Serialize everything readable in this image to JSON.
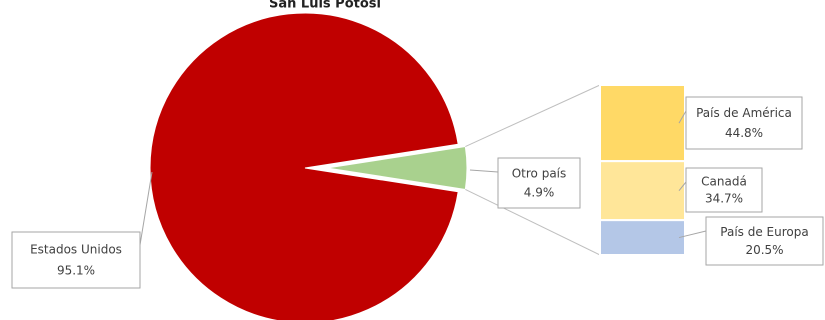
{
  "chart_data": {
    "type": "pie-of-bar",
    "title": "San Luis Potosí",
    "categories": [
      "Estados Unidos",
      "Otro país"
    ],
    "values": [
      95.1,
      4.9
    ],
    "value_labels": [
      "95.1%",
      "4.9%"
    ],
    "colors": [
      "#c00000",
      "#a9d18e"
    ],
    "breakdown": {
      "categories": [
        "País de América",
        "Canadá",
        "País de Europa"
      ],
      "values": [
        44.8,
        34.7,
        20.5
      ],
      "value_labels": [
        "44.8%",
        "34.7%",
        "20.5%"
      ],
      "colors": [
        "#ffd966",
        "#ffe699",
        "#b4c7e7"
      ]
    }
  }
}
